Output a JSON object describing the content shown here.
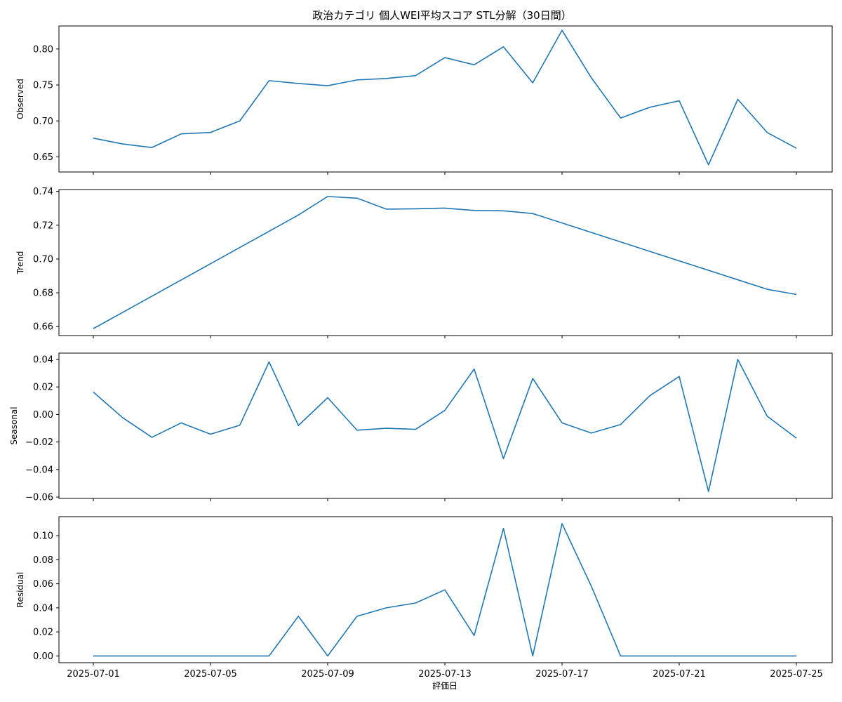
{
  "chart_data": {
    "type": "line",
    "title": "政治カテゴリ 個人WEI平均スコア STL分解（30日間）",
    "xlabel": "評価日",
    "x": [
      "2025-07-01",
      "2025-07-02",
      "2025-07-03",
      "2025-07-04",
      "2025-07-05",
      "2025-07-06",
      "2025-07-07",
      "2025-07-08",
      "2025-07-09",
      "2025-07-10",
      "2025-07-11",
      "2025-07-12",
      "2025-07-13",
      "2025-07-14",
      "2025-07-15",
      "2025-07-16",
      "2025-07-17",
      "2025-07-18",
      "2025-07-19",
      "2025-07-20",
      "2025-07-21",
      "2025-07-22",
      "2025-07-23",
      "2025-07-24",
      "2025-07-25"
    ],
    "xticks": [
      "2025-07-01",
      "2025-07-05",
      "2025-07-09",
      "2025-07-13",
      "2025-07-17",
      "2025-07-21",
      "2025-07-25"
    ],
    "line_color": "#1f77b4",
    "grid": false,
    "panels": [
      {
        "name": "observed",
        "ylabel": "Observed",
        "ylim": [
          0.629,
          0.832
        ],
        "yticks": [
          0.65,
          0.7,
          0.75,
          0.8
        ],
        "ytick_labels": [
          "0.65",
          "0.70",
          "0.75",
          "0.80"
        ],
        "values": [
          0.676,
          0.668,
          0.663,
          0.682,
          0.684,
          0.7,
          0.756,
          0.752,
          0.749,
          0.757,
          0.759,
          0.763,
          0.788,
          0.778,
          0.803,
          0.753,
          0.826,
          0.76,
          0.704,
          0.719,
          0.728,
          0.639,
          0.73,
          0.684,
          0.662
        ]
      },
      {
        "name": "trend",
        "ylabel": "Trend",
        "ylim": [
          0.6547,
          0.7411
        ],
        "yticks": [
          0.66,
          0.68,
          0.7,
          0.72,
          0.74
        ],
        "ytick_labels": [
          "0.66",
          "0.68",
          "0.70",
          "0.72",
          "0.74"
        ],
        "values": [
          0.6588,
          0.6684,
          0.678,
          0.6876,
          0.6972,
          0.7068,
          0.7164,
          0.726,
          0.737,
          0.736,
          0.7295,
          0.7297,
          0.7301,
          0.7287,
          0.7285,
          0.7269,
          0.7213,
          0.7157,
          0.7101,
          0.7045,
          0.6989,
          0.6933,
          0.6877,
          0.6821,
          0.679
        ]
      },
      {
        "name": "seasonal",
        "ylabel": "Seasonal",
        "ylim": [
          -0.061,
          0.0446
        ],
        "yticks": [
          -0.06,
          -0.04,
          -0.02,
          0.0,
          0.02,
          0.04
        ],
        "ytick_labels": [
          "−0.06",
          "−0.04",
          "−0.02",
          "0.00",
          "0.02",
          "0.04"
        ],
        "values": [
          0.0163,
          -0.0023,
          -0.0166,
          -0.0061,
          -0.0143,
          -0.0078,
          0.0382,
          -0.008,
          0.0122,
          -0.0114,
          -0.01,
          -0.0108,
          0.003,
          0.033,
          -0.0321,
          0.0262,
          -0.0061,
          -0.0135,
          -0.0073,
          0.0137,
          0.0276,
          -0.056,
          0.04,
          -0.0012,
          -0.0172
        ]
      },
      {
        "name": "residual",
        "ylabel": "Residual",
        "ylim": [
          -0.0056,
          0.1158
        ],
        "yticks": [
          0.0,
          0.02,
          0.04,
          0.06,
          0.08,
          0.1
        ],
        "ytick_labels": [
          "0.00",
          "0.02",
          "0.04",
          "0.06",
          "0.08",
          "0.10"
        ],
        "values": [
          0.0,
          0.0,
          0.0,
          0.0,
          0.0,
          0.0,
          0.0,
          0.033,
          0.0,
          0.033,
          0.04,
          0.044,
          0.055,
          0.017,
          0.106,
          0.0,
          0.11,
          0.058,
          0.0,
          0.0,
          0.0,
          0.0,
          0.0,
          0.0,
          0.0
        ]
      }
    ]
  }
}
